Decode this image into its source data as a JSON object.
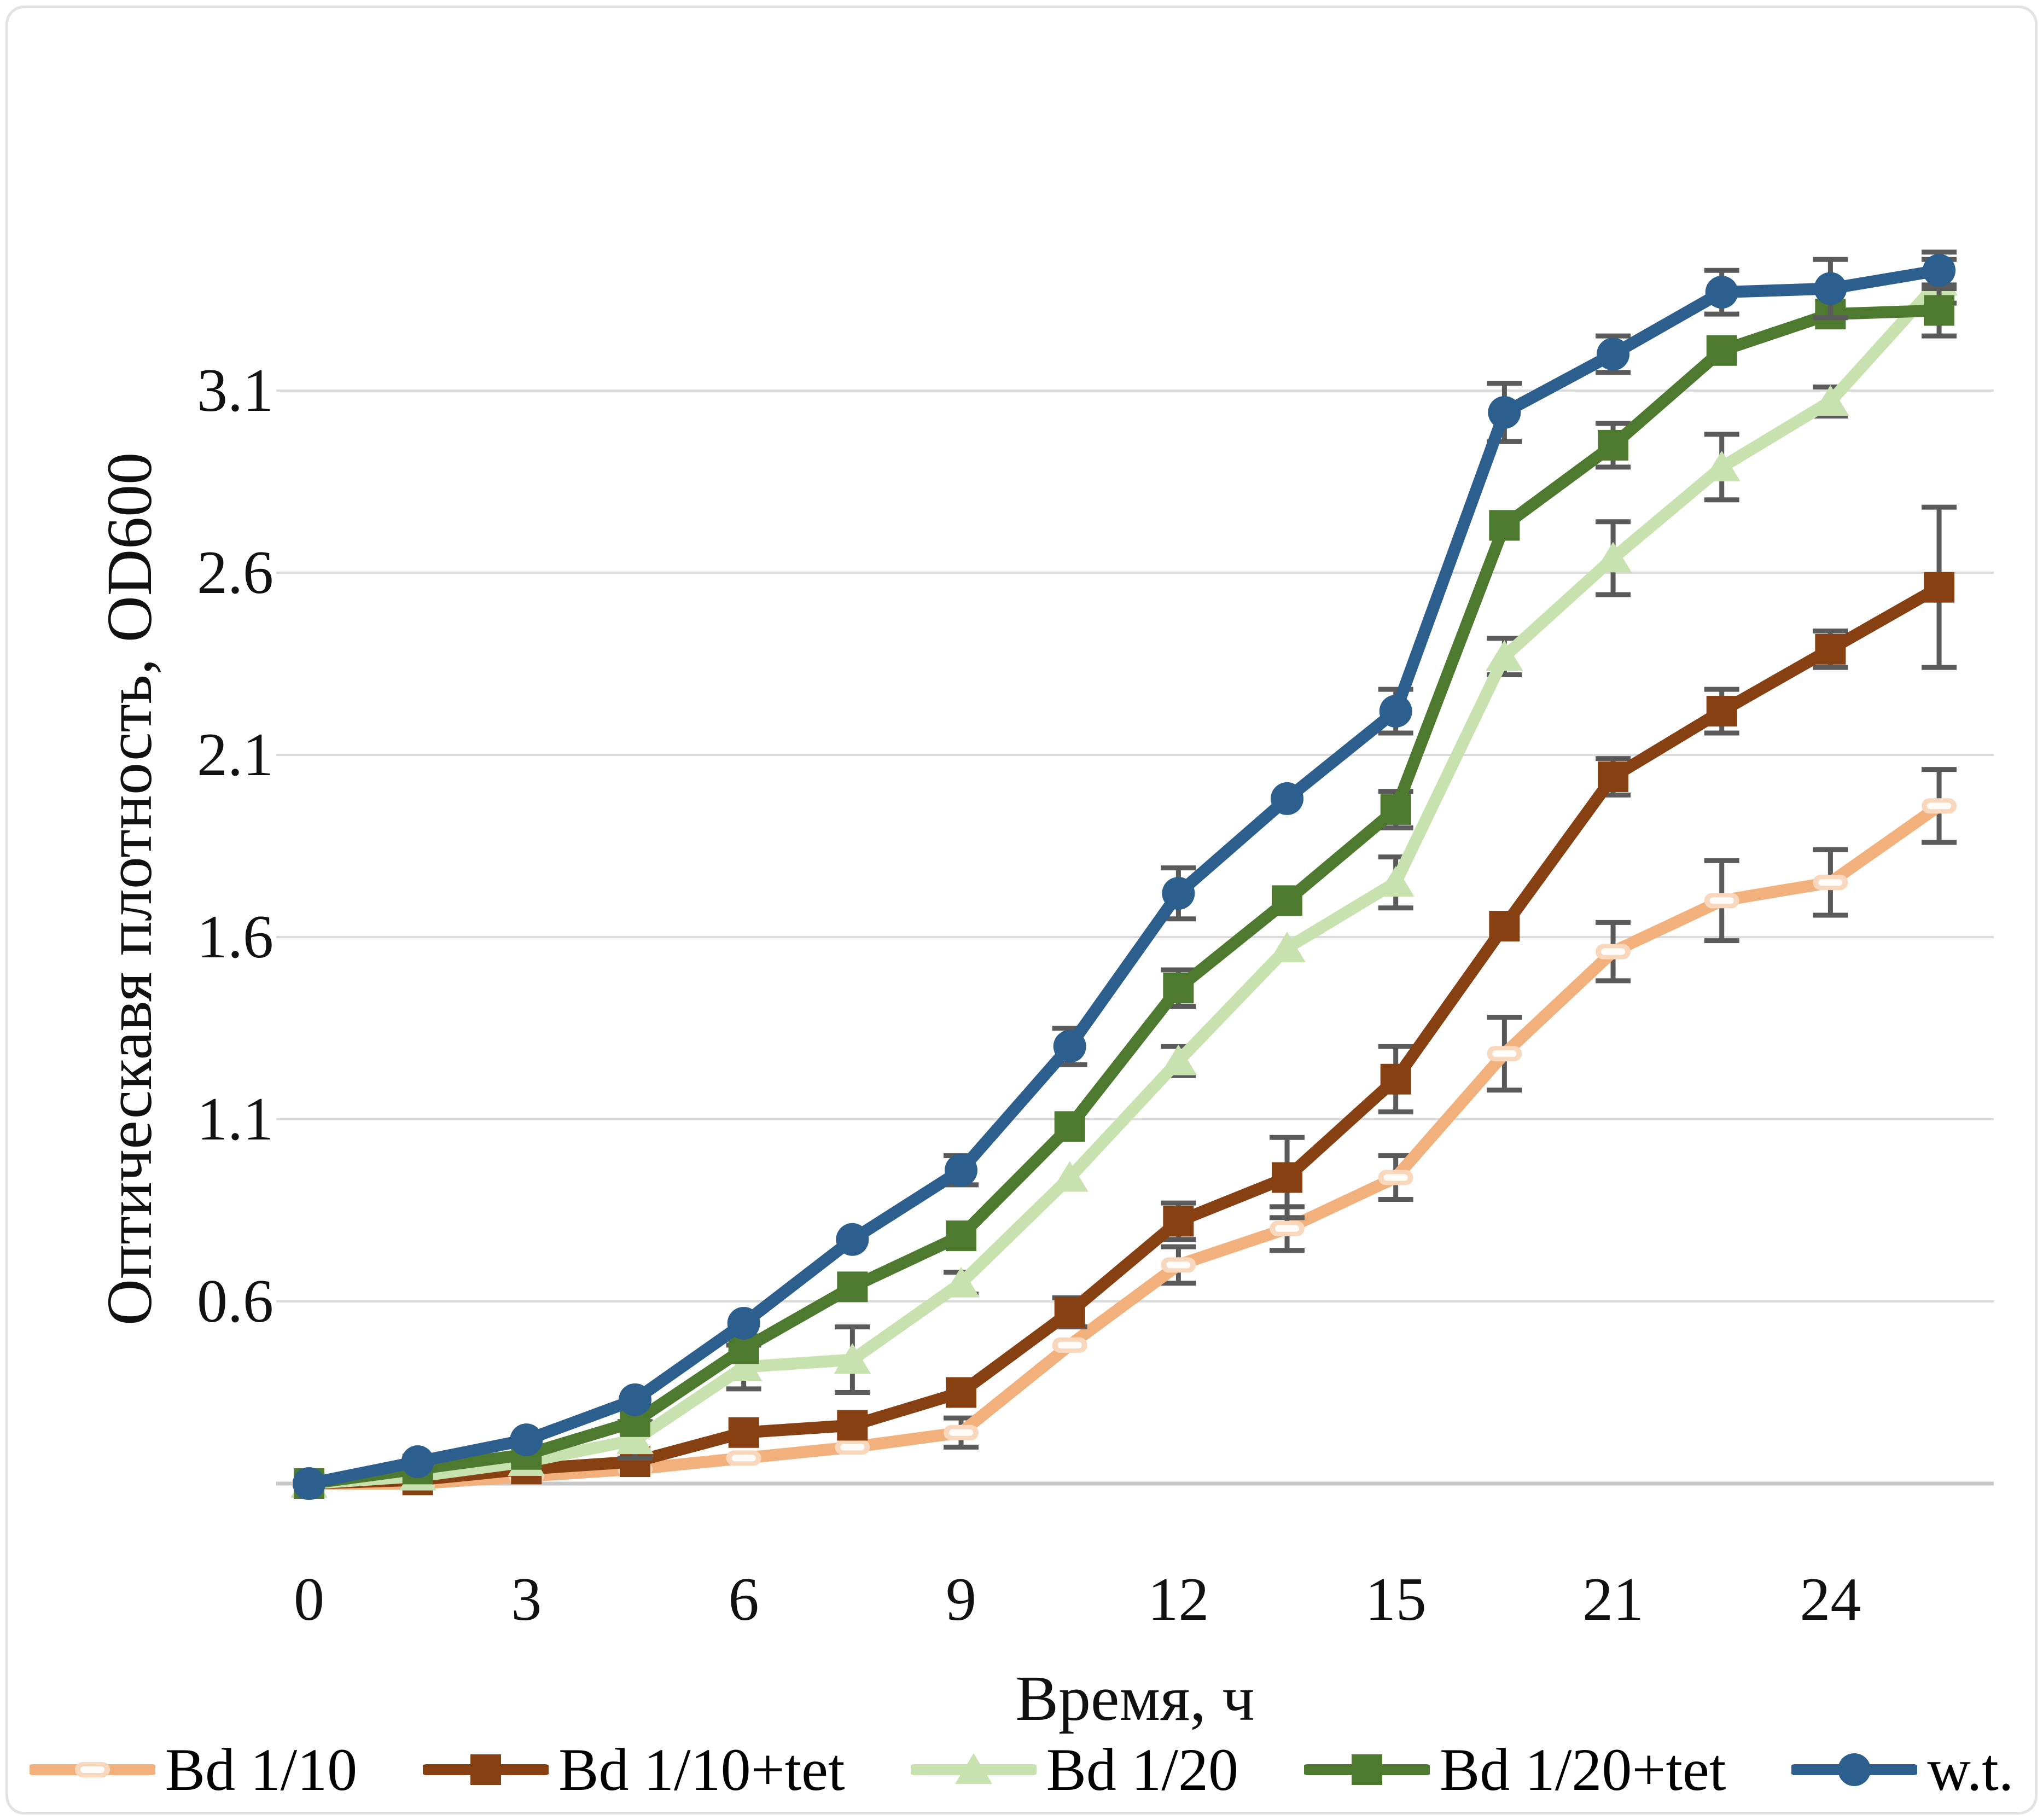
{
  "chart_data": {
    "type": "line",
    "title": "",
    "xlabel": "Время, ч",
    "ylabel": "Оптическавя плотность, OD600",
    "grid": true,
    "legend_position": "bottom",
    "y_baseline": 0.1,
    "ylim": [
      0.1,
      3.55
    ],
    "y_tick_values": [
      3.1,
      2.6,
      2.1,
      1.6,
      1.1,
      0.6
    ],
    "y_tick_labels": [
      "3.1",
      "2.6",
      "2.1",
      "1.6",
      "1.1",
      "0.6"
    ],
    "x_tick_labels": [
      "0",
      "3",
      "6",
      "9",
      "12",
      "15",
      "21",
      "24"
    ],
    "x_tick_point_indices": [
      0,
      2,
      4,
      6,
      8,
      10,
      12,
      14
    ],
    "x_categories_hours": [
      0,
      1.5,
      3,
      4.5,
      6,
      7.5,
      9,
      10.5,
      12,
      13.5,
      15,
      18,
      21,
      22.5,
      24,
      25.5
    ],
    "gridline_color": "#dadada",
    "axis_line_color": "#c8c8c8",
    "error_bar_color": "#5a5a5a",
    "series": [
      {
        "name": "Bd 1/10",
        "color": "#F2B07C",
        "marker": "dash-pill",
        "marker_fill": "#F9D7BC",
        "values": [
          0.1,
          0.1,
          0.12,
          0.14,
          0.17,
          0.2,
          0.24,
          0.48,
          0.7,
          0.8,
          0.94,
          1.28,
          1.56,
          1.7,
          1.75,
          1.96
        ],
        "errors": [
          0,
          0,
          0,
          0,
          0,
          0,
          0.04,
          0,
          0.05,
          0.06,
          0.06,
          0.1,
          0.08,
          0.11,
          0.09,
          0.1
        ]
      },
      {
        "name": "Bd 1/10+tet",
        "color": "#874012",
        "marker": "square",
        "marker_fill": "#874012",
        "values": [
          0.1,
          0.11,
          0.14,
          0.16,
          0.24,
          0.26,
          0.35,
          0.57,
          0.82,
          0.94,
          1.21,
          1.63,
          2.04,
          2.22,
          2.39,
          2.56
        ],
        "errors": [
          0,
          0,
          0,
          0,
          0,
          0,
          0,
          0.04,
          0.05,
          0.11,
          0.09,
          0,
          0.05,
          0.06,
          0.05,
          0.22
        ]
      },
      {
        "name": "Bd 1/20",
        "color": "#C7E1AF",
        "marker": "triangle",
        "marker_fill": "#C7E1AF",
        "values": [
          0.1,
          0.12,
          0.16,
          0.22,
          0.42,
          0.44,
          0.65,
          0.94,
          1.26,
          1.57,
          1.75,
          2.37,
          2.64,
          2.89,
          3.07,
          3.4
        ],
        "errors": [
          0,
          0,
          0,
          0.05,
          0.06,
          0.09,
          0.03,
          0,
          0.04,
          0,
          0.07,
          0.05,
          0.1,
          0.09,
          0.04,
          0.06
        ]
      },
      {
        "name": "Bd 1/20+tet",
        "color": "#4E7A30",
        "marker": "square",
        "marker_fill": "#4E7A30",
        "values": [
          0.1,
          0.14,
          0.18,
          0.27,
          0.47,
          0.64,
          0.78,
          1.08,
          1.46,
          1.7,
          1.95,
          2.73,
          2.95,
          3.21,
          3.31,
          3.32
        ],
        "errors": [
          0,
          0,
          0,
          0,
          0,
          0,
          0,
          0,
          0.05,
          0,
          0.05,
          0,
          0.06,
          0,
          0,
          0.07
        ]
      },
      {
        "name": "w.t.",
        "color": "#2C5F8E",
        "marker": "circle",
        "marker_fill": "#2C5F8E",
        "values": [
          0.1,
          0.16,
          0.22,
          0.33,
          0.54,
          0.77,
          0.96,
          1.3,
          1.72,
          1.98,
          2.22,
          3.04,
          3.2,
          3.37,
          3.38,
          3.43
        ],
        "errors": [
          0,
          0,
          0,
          0,
          0,
          0,
          0.04,
          0.05,
          0.07,
          0,
          0.06,
          0.08,
          0.05,
          0.06,
          0.08,
          0.05
        ]
      }
    ]
  }
}
